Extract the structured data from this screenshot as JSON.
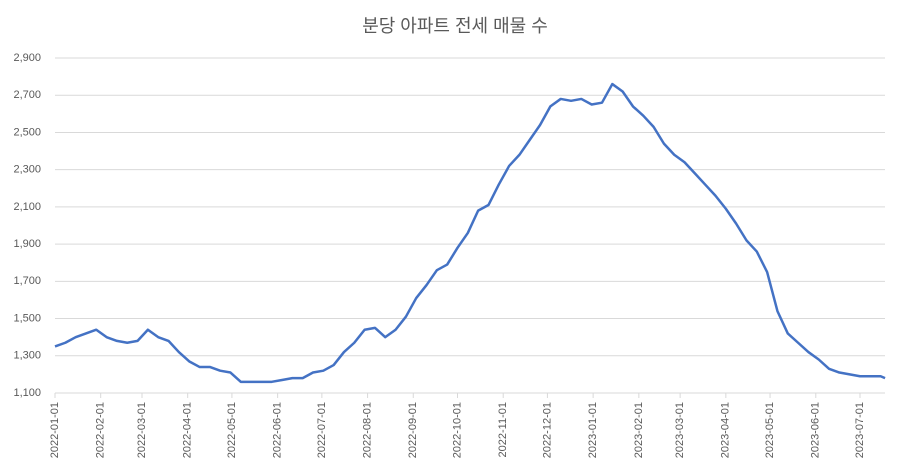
{
  "chart_data": {
    "type": "line",
    "title": "분당 아파트 전세 매물 수",
    "x": [
      "2022-01-01",
      "2022-01-08",
      "2022-01-15",
      "2022-01-22",
      "2022-01-29",
      "2022-02-05",
      "2022-02-12",
      "2022-02-19",
      "2022-02-26",
      "2022-03-05",
      "2022-03-12",
      "2022-03-19",
      "2022-03-26",
      "2022-04-02",
      "2022-04-09",
      "2022-04-16",
      "2022-04-23",
      "2022-04-30",
      "2022-05-07",
      "2022-05-14",
      "2022-05-21",
      "2022-05-28",
      "2022-06-04",
      "2022-06-11",
      "2022-06-18",
      "2022-06-25",
      "2022-07-02",
      "2022-07-09",
      "2022-07-16",
      "2022-07-23",
      "2022-07-30",
      "2022-08-06",
      "2022-08-13",
      "2022-08-20",
      "2022-08-27",
      "2022-09-03",
      "2022-09-10",
      "2022-09-17",
      "2022-09-24",
      "2022-10-01",
      "2022-10-08",
      "2022-10-15",
      "2022-10-22",
      "2022-10-29",
      "2022-11-05",
      "2022-11-12",
      "2022-11-19",
      "2022-11-26",
      "2022-12-03",
      "2022-12-10",
      "2022-12-17",
      "2022-12-24",
      "2022-12-31",
      "2023-01-07",
      "2023-01-14",
      "2023-01-21",
      "2023-01-28",
      "2023-02-04",
      "2023-02-11",
      "2023-02-18",
      "2023-02-25",
      "2023-03-04",
      "2023-03-11",
      "2023-03-18",
      "2023-03-25",
      "2023-04-01",
      "2023-04-08",
      "2023-04-15",
      "2023-04-22",
      "2023-04-29",
      "2023-05-06",
      "2023-05-13",
      "2023-05-20",
      "2023-05-27",
      "2023-06-03",
      "2023-06-10",
      "2023-06-17",
      "2023-06-24",
      "2023-07-01",
      "2023-07-08",
      "2023-07-15",
      "2023-07-18"
    ],
    "series": [
      {
        "color": "#4472c4",
        "values": [
          1350,
          1370,
          1400,
          1420,
          1440,
          1400,
          1380,
          1370,
          1380,
          1440,
          1400,
          1380,
          1320,
          1270,
          1240,
          1240,
          1220,
          1210,
          1160,
          1160,
          1160,
          1160,
          1170,
          1180,
          1180,
          1210,
          1220,
          1250,
          1320,
          1370,
          1440,
          1450,
          1400,
          1440,
          1510,
          1610,
          1680,
          1760,
          1790,
          1880,
          1960,
          2080,
          2110,
          2220,
          2320,
          2380,
          2460,
          2540,
          2640,
          2680,
          2670,
          2680,
          2650,
          2660,
          2760,
          2720,
          2640,
          2590,
          2530,
          2440,
          2380,
          2340,
          2280,
          2220,
          2160,
          2090,
          2010,
          1920,
          1860,
          1750,
          1540,
          1420,
          1370,
          1320,
          1280,
          1230,
          1210,
          1200,
          1190,
          1190,
          1190,
          1180
        ]
      }
    ],
    "xticks": [
      "2022-01-01",
      "2022-02-01",
      "2022-03-01",
      "2022-04-01",
      "2022-05-01",
      "2022-06-01",
      "2022-07-01",
      "2022-08-01",
      "2022-09-01",
      "2022-10-01",
      "2022-11-01",
      "2022-12-01",
      "2023-01-01",
      "2023-02-01",
      "2023-03-01",
      "2023-04-01",
      "2023-05-01",
      "2023-06-01",
      "2023-07-01"
    ],
    "ylim": [
      1100,
      2900
    ],
    "yticks": [
      {
        "value": 1100,
        "label": "1,100"
      },
      {
        "value": 1300,
        "label": "1,300"
      },
      {
        "value": 1500,
        "label": "1,500"
      },
      {
        "value": 1700,
        "label": "1,700"
      },
      {
        "value": 1900,
        "label": "1,900"
      },
      {
        "value": 2100,
        "label": "2,100"
      },
      {
        "value": 2300,
        "label": "2,300"
      },
      {
        "value": 2500,
        "label": "2,500"
      },
      {
        "value": 2700,
        "label": "2,700"
      },
      {
        "value": 2900,
        "label": "2,900"
      }
    ],
    "grid": true
  }
}
